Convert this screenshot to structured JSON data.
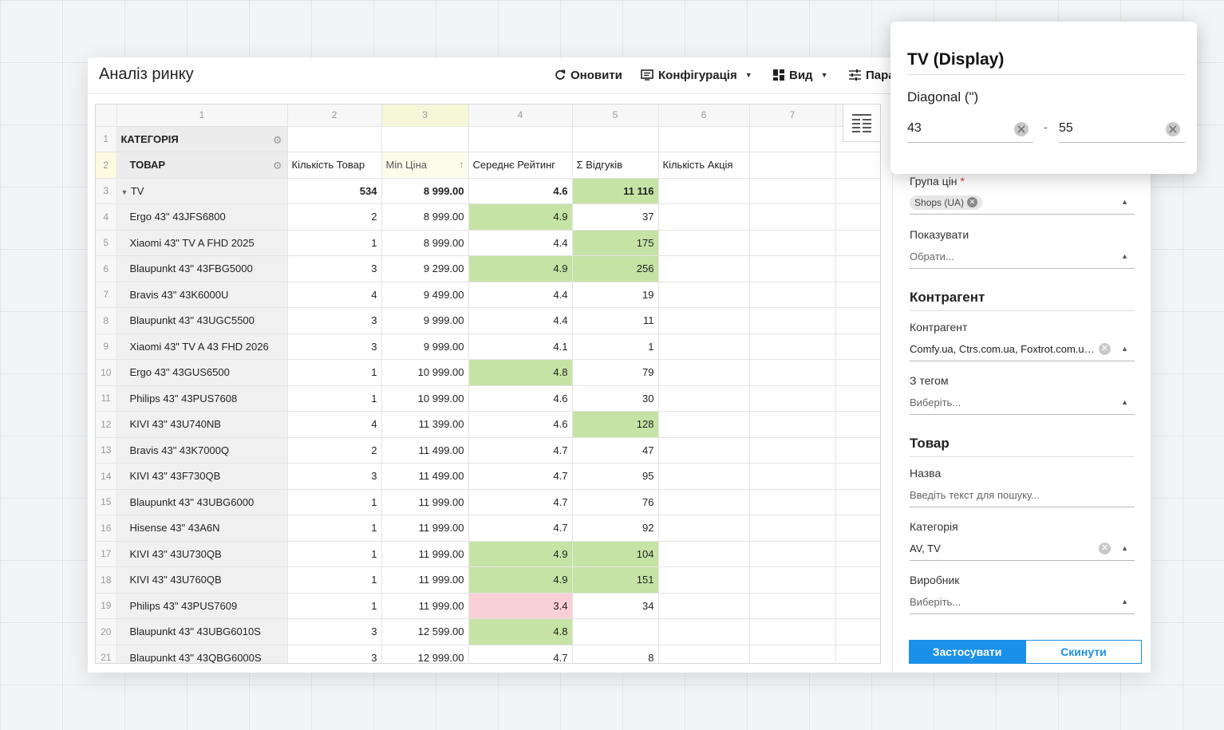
{
  "app": {
    "title": "Аналіз ринку",
    "toolbar": {
      "refresh": "Оновити",
      "config": "Конфігурація",
      "view": "Вид",
      "params": "Пара"
    }
  },
  "grid": {
    "column_numbers": [
      "1",
      "2",
      "3",
      "4",
      "5",
      "6",
      "7"
    ],
    "category_label": "КАТЕГОРІЯ",
    "product_label": "ТОВАР",
    "headers": [
      "Кількість Товар",
      "Min Ціна",
      "Середнє Рейтинг",
      "Σ Відгуків",
      "Кількість Акція"
    ],
    "group": {
      "row": "3",
      "name": "TV",
      "count": "534",
      "min_price": "8 999.00",
      "rating": "4.6",
      "reviews": "11 116"
    },
    "rows": [
      {
        "n": "4",
        "name": "Ergo 43\" 43JFS6800",
        "count": "2",
        "price": "8 999.00",
        "rating": "4.9",
        "reviews": "37",
        "rating_hl": "green",
        "reviews_hl": ""
      },
      {
        "n": "5",
        "name": "Xiaomi 43\" TV A FHD 2025",
        "count": "1",
        "price": "8 999.00",
        "rating": "4.4",
        "reviews": "175",
        "rating_hl": "",
        "reviews_hl": "green"
      },
      {
        "n": "6",
        "name": "Blaupunkt 43\" 43FBG5000",
        "count": "3",
        "price": "9 299.00",
        "rating": "4.9",
        "reviews": "256",
        "rating_hl": "green",
        "reviews_hl": "green"
      },
      {
        "n": "7",
        "name": "Bravis 43\" 43K6000U",
        "count": "4",
        "price": "9 499.00",
        "rating": "4.4",
        "reviews": "19",
        "rating_hl": "",
        "reviews_hl": ""
      },
      {
        "n": "8",
        "name": "Blaupunkt 43\" 43UGC5500",
        "count": "3",
        "price": "9 999.00",
        "rating": "4.4",
        "reviews": "11",
        "rating_hl": "",
        "reviews_hl": ""
      },
      {
        "n": "9",
        "name": "Xiaomi 43\" TV A 43 FHD 2026",
        "count": "3",
        "price": "9 999.00",
        "rating": "4.1",
        "reviews": "1",
        "rating_hl": "",
        "reviews_hl": ""
      },
      {
        "n": "10",
        "name": "Ergo 43\" 43GUS6500",
        "count": "1",
        "price": "10 999.00",
        "rating": "4.8",
        "reviews": "79",
        "rating_hl": "green",
        "reviews_hl": ""
      },
      {
        "n": "11",
        "name": "Philips 43\" 43PUS7608",
        "count": "1",
        "price": "10 999.00",
        "rating": "4.6",
        "reviews": "30",
        "rating_hl": "",
        "reviews_hl": ""
      },
      {
        "n": "12",
        "name": "KIVI 43\" 43U740NB",
        "count": "4",
        "price": "11 399.00",
        "rating": "4.6",
        "reviews": "128",
        "rating_hl": "",
        "reviews_hl": "green"
      },
      {
        "n": "13",
        "name": "Bravis 43\" 43K7000Q",
        "count": "2",
        "price": "11 499.00",
        "rating": "4.7",
        "reviews": "47",
        "rating_hl": "",
        "reviews_hl": ""
      },
      {
        "n": "14",
        "name": "KIVI 43\" 43F730QB",
        "count": "3",
        "price": "11 499.00",
        "rating": "4.7",
        "reviews": "95",
        "rating_hl": "",
        "reviews_hl": ""
      },
      {
        "n": "15",
        "name": "Blaupunkt 43\" 43UBG6000",
        "count": "1",
        "price": "11 999.00",
        "rating": "4.7",
        "reviews": "76",
        "rating_hl": "",
        "reviews_hl": ""
      },
      {
        "n": "16",
        "name": "Hisense 43\" 43A6N",
        "count": "1",
        "price": "11 999.00",
        "rating": "4.7",
        "reviews": "92",
        "rating_hl": "",
        "reviews_hl": ""
      },
      {
        "n": "17",
        "name": "KIVI 43\" 43U730QB",
        "count": "1",
        "price": "11 999.00",
        "rating": "4.9",
        "reviews": "104",
        "rating_hl": "green",
        "reviews_hl": "green"
      },
      {
        "n": "18",
        "name": "KIVI 43\" 43U760QB",
        "count": "1",
        "price": "11 999.00",
        "rating": "4.9",
        "reviews": "151",
        "rating_hl": "green",
        "reviews_hl": "green"
      },
      {
        "n": "19",
        "name": "Philips 43\" 43PUS7609",
        "count": "1",
        "price": "11 999.00",
        "rating": "3.4",
        "reviews": "34",
        "rating_hl": "red",
        "reviews_hl": ""
      },
      {
        "n": "20",
        "name": "Blaupunkt 43\" 43UBG6010S",
        "count": "3",
        "price": "12 599.00",
        "rating": "4.8",
        "reviews": "",
        "rating_hl": "green",
        "reviews_hl": ""
      },
      {
        "n": "21",
        "name": "Blaupunkt 43\" 43QBG6000S",
        "count": "3",
        "price": "12 999.00",
        "rating": "4.7",
        "reviews": "8",
        "rating_hl": "",
        "reviews_hl": ""
      }
    ]
  },
  "filters": {
    "price_group_label": "Група цін",
    "price_group_required": "*",
    "price_group_chip": "Shops (UA)",
    "show_label": "Показувати",
    "show_placeholder": "Обрати...",
    "contractor_section": "Контрагент",
    "contractor_label": "Контрагент",
    "contractor_value": "Comfy.ua, Ctrs.com.ua, Foxtrot.com.ua...",
    "tag_label": "З тегом",
    "tag_placeholder": "Виберіть...",
    "product_section": "Товар",
    "name_label": "Назва",
    "name_placeholder": "Введіть текст для пошуку...",
    "category_label": "Категорія",
    "category_value": "AV, TV",
    "maker_label": "Виробник",
    "maker_placeholder": "Виберіть...",
    "apply": "Застосувати",
    "reset": "Скинути"
  },
  "popup": {
    "title": "TV (Display)",
    "label": "Diagonal (\")",
    "from": "43",
    "separator": "-",
    "to": "55"
  },
  "colors": {
    "accent": "#1b90e8",
    "highlight_green": "#c6e3a6",
    "highlight_red": "#f9d0d6"
  }
}
